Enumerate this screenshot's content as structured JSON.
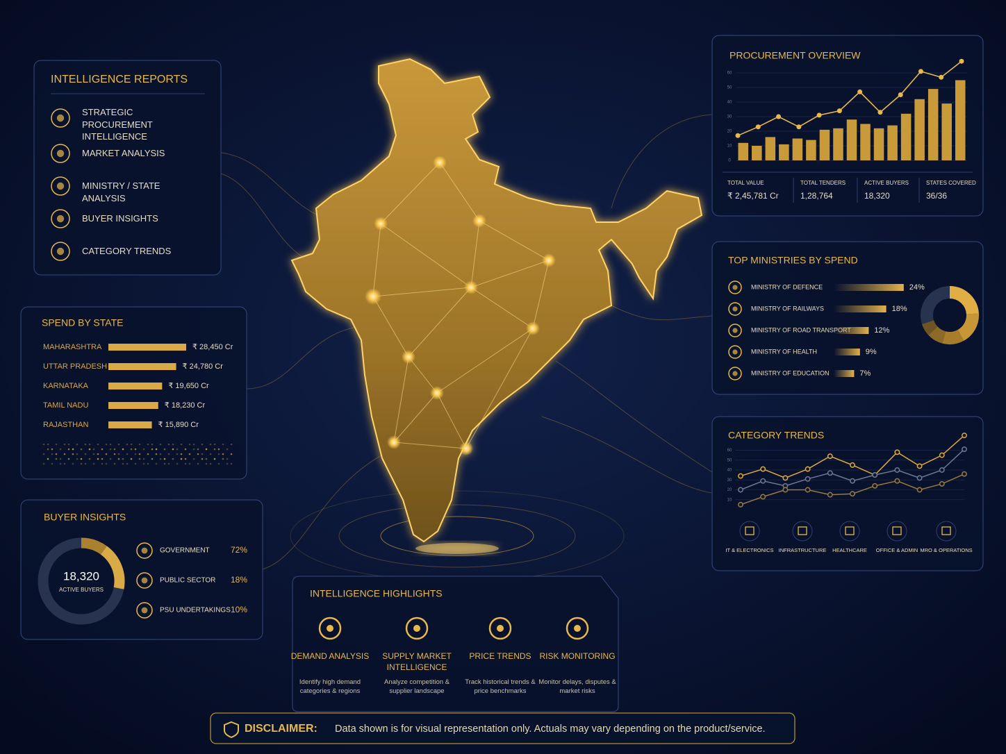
{
  "intelligence_reports": {
    "title": "INTELLIGENCE REPORTS",
    "items": [
      "STRATEGIC PROCUREMENT INTELLIGENCE",
      "MARKET ANALYSIS",
      "MINISTRY / STATE ANALYSIS",
      "BUYER INSIGHTS",
      "CATEGORY TRENDS"
    ]
  },
  "spend_by_state": {
    "title": "SPEND BY STATE",
    "categories": [
      "MAHARASHTRA",
      "UTTAR PRADESH",
      "KARNATAKA",
      "TAMIL NADU",
      "RAJASTHAN"
    ],
    "values": [
      28450,
      24780,
      19650,
      18230,
      15890
    ],
    "value_labels": [
      "₹ 28,450 Cr",
      "₹ 24,780 Cr",
      "₹ 19,650 Cr",
      "₹ 18,230 Cr",
      "₹ 15,890 Cr"
    ],
    "color": "#d9aa45"
  },
  "buyer_insights": {
    "title": "BUYER INSIGHTS",
    "center_value": "18,320",
    "center_label": "ACTIVE BUYERS",
    "categories": [
      "GOVERNMENT",
      "PUBLIC SECTOR",
      "PSU UNDERTAKINGS"
    ],
    "values": [
      72,
      18,
      10
    ],
    "value_labels": [
      "72%",
      "18%",
      "10%"
    ],
    "colors": [
      "#27334f",
      "#d9aa45",
      "#a9812f"
    ]
  },
  "procurement_overview": {
    "title": "PROCUREMENT OVERVIEW",
    "bars": [
      12,
      10,
      16,
      11,
      15,
      14,
      21,
      22,
      28,
      25,
      22,
      24,
      32,
      42,
      49,
      39,
      55
    ],
    "line": [
      17,
      23,
      30,
      23,
      31,
      34,
      47,
      33,
      45,
      61,
      57,
      68
    ],
    "ylim": [
      0,
      70
    ],
    "yticks": [
      0,
      10,
      20,
      30,
      40,
      50,
      60
    ],
    "bar_color": "#c99a3a",
    "line_color": "#e8b84a",
    "stats": [
      {
        "label": "TOTAL VALUE",
        "value": "₹ 2,45,781 Cr"
      },
      {
        "label": "TOTAL TENDERS",
        "value": "1,28,764"
      },
      {
        "label": "ACTIVE BUYERS",
        "value": "18,320"
      },
      {
        "label": "STATES COVERED",
        "value": "36/36"
      }
    ]
  },
  "top_ministries": {
    "title": "TOP MINISTRIES BY SPEND",
    "categories": [
      "MINISTRY OF DEFENCE",
      "MINISTRY OF RAILWAYS",
      "MINISTRY OF ROAD TRANSPORT",
      "MINISTRY OF HEALTH",
      "MINISTRY OF EDUCATION"
    ],
    "values": [
      24,
      18,
      12,
      9,
      7
    ],
    "value_labels": [
      "24%",
      "18%",
      "12%",
      "9%",
      "7%"
    ],
    "colors": [
      "#e0ae45",
      "#c79636",
      "#a77d2c",
      "#8c6a27",
      "#6e5423"
    ]
  },
  "category_trends": {
    "title": "CATEGORY TRENDS",
    "ylim": [
      0,
      80
    ],
    "yticks": [
      10,
      20,
      30,
      40,
      50,
      60
    ],
    "series": [
      {
        "color": "#e0a93a",
        "values": [
          34,
          41,
          32,
          41,
          54,
          45,
          35,
          58,
          44,
          55,
          75
        ]
      },
      {
        "color": "#6f7a92",
        "values": [
          20,
          29,
          24,
          31,
          37,
          29,
          35,
          40,
          32,
          40,
          61
        ]
      },
      {
        "color": "#9a7a3c",
        "values": [
          5,
          13,
          20,
          20,
          15,
          16,
          24,
          29,
          20,
          26,
          36
        ]
      }
    ],
    "categories": [
      "IT & ELECTRONICS",
      "INFRASTRUCTURE",
      "HEALTHCARE",
      "OFFICE & ADMIN",
      "MRO & OPERATIONS"
    ]
  },
  "intelligence_highlights": {
    "title": "INTELLIGENCE HIGHLIGHTS",
    "items": [
      {
        "title": "DEMAND ANALYSIS",
        "description": "Identify high demand categories & regions"
      },
      {
        "title": "SUPPLY MARKET INTELLIGENCE",
        "description": "Analyze competition & supplier landscape"
      },
      {
        "title": "PRICE TRENDS",
        "description": "Track historical trends & price benchmarks"
      },
      {
        "title": "RISK MONITORING",
        "description": "Monitor delays, disputes & market risks"
      }
    ]
  },
  "disclaimer": {
    "label": "DISCLAIMER:",
    "text": "Data shown is for visual representation only. Actuals may vary depending on the product/service."
  }
}
